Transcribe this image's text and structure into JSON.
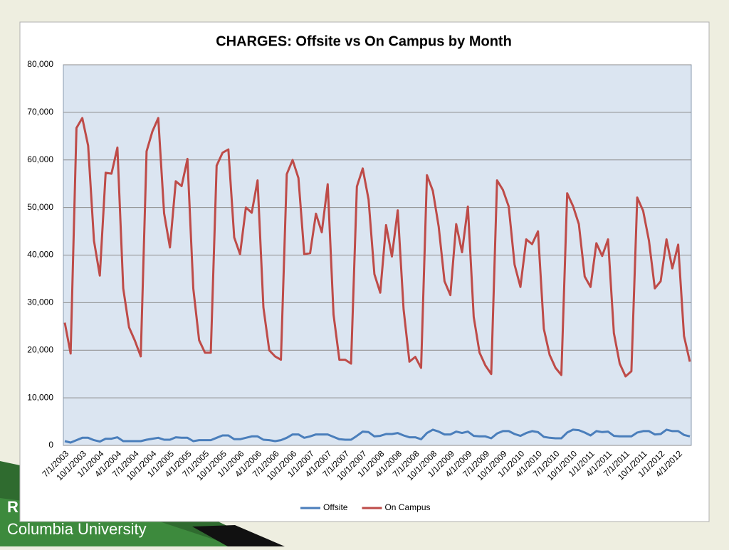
{
  "chart_data": {
    "type": "line",
    "title": "CHARGES: Offsite vs On Campus by Month",
    "categories": [
      "7/1/2003",
      null,
      null,
      "10/1/2003",
      null,
      null,
      "1/1/2004",
      null,
      null,
      "4/1/2004",
      null,
      null,
      "7/1/2004",
      null,
      null,
      "10/1/2004",
      null,
      null,
      "1/1/2005",
      null,
      null,
      "4/1/2005",
      null,
      null,
      "7/1/2005",
      null,
      null,
      "10/1/2005",
      null,
      null,
      "1/1/2006",
      null,
      null,
      "4/1/2006",
      null,
      null,
      "7/1/2006",
      null,
      null,
      "10/1/2006",
      null,
      null,
      "1/1/2007",
      null,
      null,
      "4/1/2007",
      null,
      null,
      "7/1/2007",
      null,
      null,
      "10/1/2007",
      null,
      null,
      "1/1/2008",
      null,
      null,
      "4/1/2008",
      null,
      null,
      "7/1/2008",
      null,
      null,
      "10/1/2008",
      null,
      null,
      "1/1/2009",
      null,
      null,
      "4/1/2009",
      null,
      null,
      "7/1/2009",
      null,
      null,
      "10/1/2009",
      null,
      null,
      "1/1/2010",
      null,
      null,
      "4/1/2010",
      null,
      null,
      "7/1/2010",
      null,
      null,
      "10/1/2010",
      null,
      null,
      "1/1/2011",
      null,
      null,
      "4/1/2011",
      null,
      null,
      "7/1/2011",
      null,
      null,
      "10/1/2011",
      null,
      null,
      "1/1/2012",
      null,
      null,
      "4/1/2012",
      null,
      null
    ],
    "series": [
      {
        "name": "Offsite",
        "color": "#4a7ebb",
        "values": [
          900,
          600,
          1100,
          1600,
          1600,
          1100,
          800,
          1400,
          1400,
          1700,
          900,
          900,
          900,
          900,
          1200,
          1400,
          1600,
          1200,
          1200,
          1700,
          1600,
          1600,
          900,
          1100,
          1100,
          1100,
          1600,
          2100,
          2100,
          1300,
          1300,
          1600,
          1900,
          1900,
          1200,
          1100,
          900,
          1100,
          1600,
          2300,
          2300,
          1600,
          1900,
          2300,
          2300,
          2300,
          1800,
          1300,
          1200,
          1200,
          2000,
          2900,
          2800,
          1900,
          2000,
          2400,
          2400,
          2600,
          2100,
          1700,
          1700,
          1300,
          2600,
          3300,
          2900,
          2300,
          2300,
          2900,
          2600,
          2900,
          2000,
          1900,
          1900,
          1500,
          2500,
          3000,
          3000,
          2400,
          2000,
          2600,
          3000,
          2800,
          1800,
          1600,
          1500,
          1500,
          2700,
          3300,
          3200,
          2700,
          2100,
          3000,
          2800,
          2900,
          2000,
          1900,
          1900,
          1900,
          2700,
          3000,
          3000,
          2300,
          2400,
          3300,
          3000,
          3000,
          2200,
          1900
        ]
      },
      {
        "name": "On Campus",
        "color": "#be4b48",
        "values": [
          25800,
          19300,
          66700,
          68800,
          63000,
          43000,
          35700,
          57300,
          57100,
          62600,
          33000,
          24800,
          22000,
          18700,
          61800,
          66000,
          68800,
          48800,
          41600,
          55500,
          54500,
          60200,
          33000,
          22100,
          19500,
          19500,
          58800,
          61500,
          62200,
          43700,
          40200,
          50000,
          48900,
          55700,
          29000,
          20000,
          18700,
          18000,
          57000,
          60000,
          56200,
          40200,
          40400,
          48700,
          44800,
          54900,
          27500,
          18000,
          18000,
          17200,
          54400,
          58200,
          51700,
          36000,
          32100,
          46300,
          39700,
          49400,
          28600,
          17600,
          18600,
          16300,
          56800,
          53500,
          46000,
          34500,
          31600,
          46500,
          40600,
          50200,
          27000,
          19500,
          16800,
          15000,
          55700,
          53700,
          50200,
          38000,
          33300,
          43300,
          42300,
          45000,
          24500,
          19000,
          16300,
          14800,
          53000,
          50300,
          46500,
          35500,
          33300,
          42500,
          39800,
          43300,
          23600,
          17200,
          14500,
          15600,
          52100,
          49300,
          43000,
          33000,
          34500,
          43300,
          37200,
          42200,
          23000,
          17600
        ]
      }
    ],
    "ylim": [
      0,
      80000
    ],
    "yticks": [
      0,
      {
        "value": 10000,
        "label": "10,000"
      },
      {
        "value": 20000,
        "label": "20,000"
      },
      {
        "value": 30000,
        "label": "30,000"
      },
      {
        "value": 40000,
        "label": "40,000"
      },
      {
        "value": 50000,
        "label": "50,000"
      },
      {
        "value": 60000,
        "label": "60,000"
      },
      {
        "value": 70000,
        "label": "70,000"
      },
      {
        "value": 80000,
        "label": "80,000"
      }
    ],
    "grid": true,
    "legend": "bottom"
  },
  "footer": {
    "line1": "R",
    "line2": "Columbia University"
  }
}
